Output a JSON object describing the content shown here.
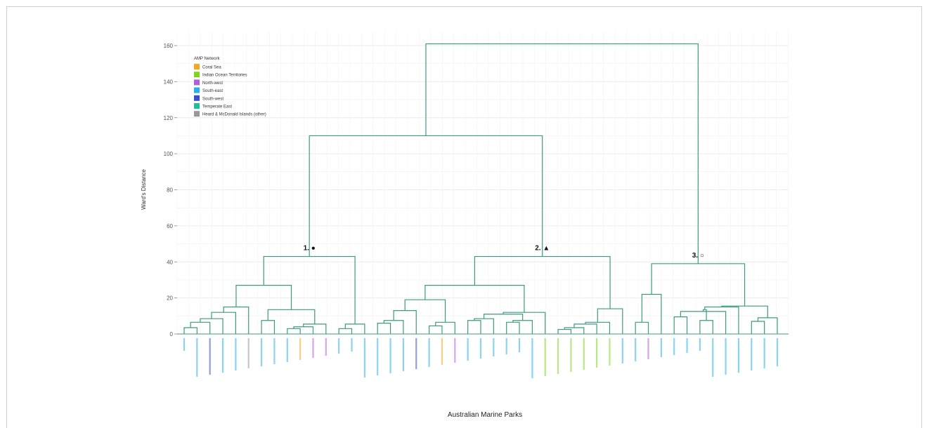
{
  "chart_data": {
    "type": "dendrogram",
    "title": "",
    "xlabel": "Australian Marine Parks",
    "ylabel": "Ward's Distance",
    "ylim": [
      0,
      165
    ],
    "yticks": [
      0,
      20,
      40,
      60,
      80,
      100,
      120,
      140,
      160
    ],
    "grid": true,
    "legend": {
      "title": "AMP Network",
      "placement": "top-left",
      "entries": [
        {
          "label": "Coral Sea",
          "color": "#f5a623"
        },
        {
          "label": "Indian Ocean Territories",
          "color": "#7ed321"
        },
        {
          "label": "North-west",
          "color": "#b05fd6"
        },
        {
          "label": "South-east",
          "color": "#2ab0e8"
        },
        {
          "label": "South-west",
          "color": "#3b4fc4"
        },
        {
          "label": "Temperate East",
          "color": "#1fbf9a"
        },
        {
          "label": "Heard & McDonald Islands (other)",
          "color": "#999999"
        }
      ]
    },
    "clusters": [
      {
        "label": "1. ●",
        "height": 43
      },
      {
        "label": "2. ▲",
        "height": 43
      },
      {
        "label": "3. ○",
        "height": 39
      }
    ],
    "merge_heights": {
      "root": 161,
      "clusters_1_2": 110
    },
    "leaf_count": 53
  }
}
